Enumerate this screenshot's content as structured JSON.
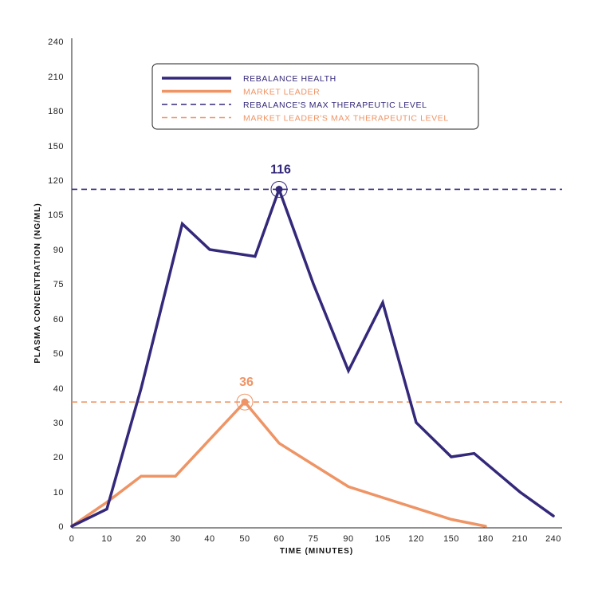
{
  "chart_data": {
    "type": "line",
    "xlabel": "TIME (MINUTES)",
    "ylabel": "PLASMA CONCENTRATION (NG/ML)",
    "x_ticks": [
      "0",
      "10",
      "20",
      "30",
      "40",
      "50",
      "60",
      "75",
      "90",
      "105",
      "120",
      "150",
      "180",
      "210",
      "240"
    ],
    "y_ticks": [
      "0",
      "10",
      "20",
      "30",
      "40",
      "50",
      "60",
      "75",
      "90",
      "105",
      "120",
      "150",
      "180",
      "210",
      "240"
    ],
    "x_scale": "categorical tick positions (non-linear spacing)",
    "y_scale": "categorical tick positions (non-linear spacing)",
    "legend_position": "top-center",
    "series": [
      {
        "name": "REBALANCE HEALTH",
        "color": "#33287a",
        "style": "solid",
        "points": [
          [
            0,
            0
          ],
          [
            10,
            5
          ],
          [
            20,
            40
          ],
          [
            32,
            101
          ],
          [
            40,
            90
          ],
          [
            53,
            87
          ],
          [
            60,
            116
          ],
          [
            75,
            75
          ],
          [
            90,
            45
          ],
          [
            105,
            67
          ],
          [
            120,
            30
          ],
          [
            150,
            20
          ],
          [
            170,
            21
          ],
          [
            210,
            10
          ],
          [
            240,
            3
          ]
        ]
      },
      {
        "name": "MARKET LEADER",
        "color": "#ee9465",
        "style": "solid",
        "points": [
          [
            0,
            0
          ],
          [
            10,
            7
          ],
          [
            20,
            14.5
          ],
          [
            30,
            14.5
          ],
          [
            50,
            36
          ],
          [
            60,
            24
          ],
          [
            90,
            11.5
          ],
          [
            150,
            2
          ],
          [
            180,
            0
          ]
        ]
      },
      {
        "name": "REBALANCE'S MAX THERAPEUTIC LEVEL",
        "color": "#33287a",
        "style": "dashed",
        "y": 116
      },
      {
        "name": "MARKET LEADER'S MAX THERAPEUTIC LEVEL",
        "color": "#ee9465",
        "style": "dashed",
        "y": 36
      }
    ],
    "annotations": [
      {
        "text": "116",
        "x": 60,
        "y": 116,
        "color": "#33287a"
      },
      {
        "text": "36",
        "x": 50,
        "y": 36,
        "color": "#ee9465"
      }
    ]
  }
}
